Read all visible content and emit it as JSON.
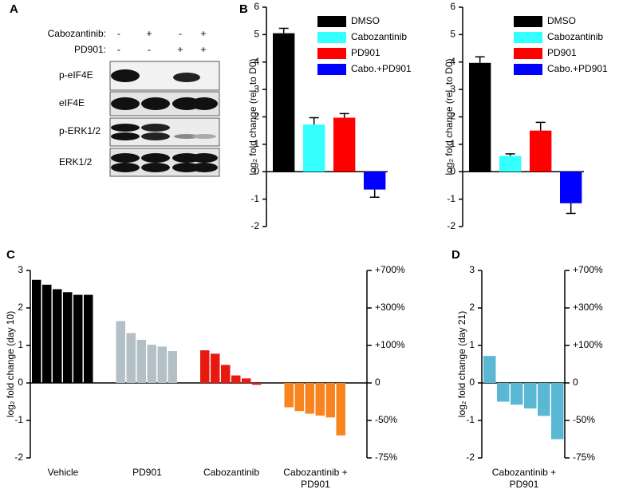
{
  "blot": {
    "panel_label": "A",
    "treatments": [
      {
        "name": "Cabozantinib:",
        "signs": [
          "-",
          "+",
          "-",
          "+"
        ]
      },
      {
        "name": "PD901:",
        "signs": [
          "-",
          "-",
          "+",
          "+"
        ]
      }
    ],
    "bands": [
      "p-eIF4E",
      "eIF4E",
      "p-ERK1/2",
      "ERK1/2"
    ]
  },
  "chart_data": [
    {
      "type": "bar",
      "panel_label": "B",
      "y_label": "log₂ fold change (rel. to D0)",
      "ylim": [
        -2,
        6
      ],
      "yticks": [
        -2,
        -1,
        0,
        1,
        2,
        3,
        4,
        5,
        6
      ],
      "legend": "top-right",
      "series": [
        {
          "name": "DMSO",
          "color": "#000000",
          "values": [
            5.05
          ],
          "errors": [
            0.18
          ]
        },
        {
          "name": "Cabozantinib",
          "color": "#33ffff",
          "values": [
            1.72
          ],
          "errors": [
            0.25
          ]
        },
        {
          "name": "PD901",
          "color": "#ff0000",
          "values": [
            1.97
          ],
          "errors": [
            0.15
          ]
        },
        {
          "name": "Cabo.+PD901",
          "color": "#0000ff",
          "values": [
            -0.65
          ],
          "errors": [
            0.28
          ]
        }
      ]
    },
    {
      "type": "bar",
      "y_label": "log₂ fold change (rel. to D0)",
      "ylim": [
        -2,
        6
      ],
      "yticks": [
        -2,
        -1,
        0,
        1,
        2,
        3,
        4,
        5,
        6
      ],
      "legend": "top-right",
      "series": [
        {
          "name": "DMSO",
          "color": "#000000",
          "values": [
            3.97
          ],
          "errors": [
            0.22
          ]
        },
        {
          "name": "Cabozantinib",
          "color": "#33ffff",
          "values": [
            0.58
          ],
          "errors": [
            0.07
          ]
        },
        {
          "name": "PD901",
          "color": "#ff0000",
          "values": [
            1.5
          ],
          "errors": [
            0.3
          ]
        },
        {
          "name": "Cabo.+PD901",
          "color": "#0000ff",
          "values": [
            -1.15
          ],
          "errors": [
            0.37
          ]
        }
      ]
    },
    {
      "type": "waterfall",
      "panel_label": "C",
      "y_label": "log₂ fold change (day 10)",
      "ylim": [
        -2,
        3
      ],
      "yticks": [
        -2,
        -1,
        0,
        1,
        2,
        3
      ],
      "y2lim": [
        -2,
        3
      ],
      "y2ticks": [
        {
          "value": -2,
          "label": "-75%"
        },
        {
          "value": -1,
          "label": "-50%"
        },
        0,
        {
          "value": 1,
          "label": "+100%"
        },
        {
          "value": 2,
          "label": "+300%"
        },
        {
          "value": 3,
          "label": "+700%"
        }
      ],
      "series": [
        {
          "name": "Vehicle",
          "color": "#000000",
          "values": [
            2.75,
            2.62,
            2.5,
            2.42,
            2.35,
            2.35
          ]
        },
        {
          "name": "PD901",
          "color": "#b3c0c6",
          "values": [
            1.65,
            1.33,
            1.15,
            1.02,
            0.97,
            0.85
          ]
        },
        {
          "name": "Cabozantinib",
          "color": "#e8190f",
          "values": [
            0.87,
            0.78,
            0.48,
            0.2,
            0.12,
            -0.05
          ]
        },
        {
          "name": "Cabozantinib + PD901",
          "color": "#f7841f",
          "values": [
            -0.65,
            -0.75,
            -0.82,
            -0.87,
            -0.92,
            -1.4
          ]
        }
      ]
    },
    {
      "type": "waterfall",
      "panel_label": "D",
      "y_label": "log₂ fold change (day 21)",
      "ylim": [
        -2,
        3
      ],
      "yticks": [
        -2,
        -1,
        0,
        1,
        2,
        3
      ],
      "y2lim": [
        -2,
        3
      ],
      "y2ticks": [
        {
          "value": -2,
          "label": "-75%"
        },
        {
          "value": -1,
          "label": "-50%"
        },
        0,
        {
          "value": 1,
          "label": "+100%"
        },
        {
          "value": 2,
          "label": "+300%"
        },
        {
          "value": 3,
          "label": "+700%"
        }
      ],
      "series": [
        {
          "name": "Cabozantinib + PD901",
          "color": "#5bb8d4",
          "values": [
            0.72,
            -0.5,
            -0.58,
            -0.68,
            -0.88,
            -1.5
          ]
        }
      ]
    }
  ]
}
